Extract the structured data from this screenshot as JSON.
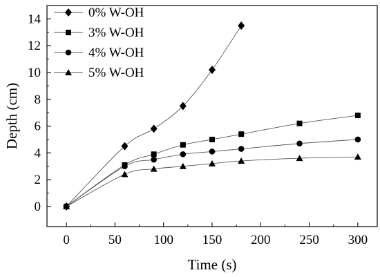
{
  "chart_data": {
    "type": "line",
    "title": "",
    "xlabel": "Time (s)",
    "ylabel": "Depth (cm)",
    "xlim": [
      -20,
      320
    ],
    "ylim": [
      -1.5,
      15
    ],
    "xticks": [
      0,
      50,
      100,
      150,
      200,
      250,
      300
    ],
    "yticks": [
      0,
      2,
      4,
      6,
      8,
      10,
      12,
      14
    ],
    "grid": false,
    "legend_position": "top-left",
    "series": [
      {
        "name": "0% W-OH",
        "marker": "diamond",
        "color": "#000000",
        "x": [
          0,
          60,
          90,
          120,
          150,
          180
        ],
        "y": [
          0,
          4.5,
          5.8,
          7.5,
          10.2,
          13.5
        ]
      },
      {
        "name": "3% W-OH",
        "marker": "square",
        "color": "#000000",
        "x": [
          0,
          60,
          90,
          120,
          150,
          180,
          240,
          300
        ],
        "y": [
          0,
          3.1,
          3.9,
          4.6,
          5.0,
          5.4,
          6.2,
          6.8
        ]
      },
      {
        "name": "4% W-OH",
        "marker": "circle",
        "color": "#000000",
        "x": [
          0,
          60,
          90,
          120,
          150,
          180,
          240,
          300
        ],
        "y": [
          0,
          3.0,
          3.5,
          3.9,
          4.1,
          4.3,
          4.7,
          5.0
        ]
      },
      {
        "name": "5% W-OH",
        "marker": "triangle",
        "color": "#000000",
        "x": [
          0,
          60,
          90,
          120,
          150,
          180,
          240,
          300
        ],
        "y": [
          0,
          2.4,
          2.8,
          3.0,
          3.2,
          3.4,
          3.6,
          3.7
        ]
      }
    ]
  }
}
